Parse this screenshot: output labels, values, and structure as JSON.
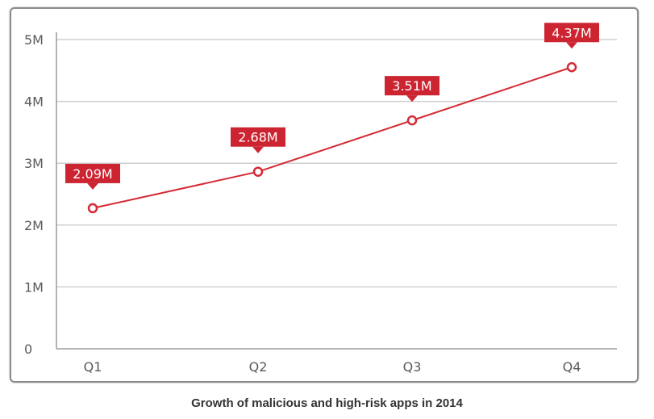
{
  "caption": "Growth of malicious and high-risk apps in 2014",
  "colors": {
    "line": "#d42a35",
    "label_bg": "#cc2431",
    "grid": "#cfcfcf",
    "axis": "#9a9a9a"
  },
  "chart_data": {
    "type": "line",
    "title": "",
    "xlabel": "",
    "ylabel": "",
    "categories": [
      "Q1",
      "Q2",
      "Q3",
      "Q4"
    ],
    "series": [
      {
        "values": [
          2.09,
          2.68,
          3.51,
          4.37
        ]
      }
    ],
    "data_labels": [
      "2.09M",
      "2.68M",
      "3.51M",
      "4.37M"
    ],
    "y_ticks": [
      0,
      1,
      2,
      3,
      4,
      5
    ],
    "y_tick_labels": [
      "0",
      "1M",
      "2M",
      "3M",
      "4M",
      "5M"
    ],
    "ylim": [
      0,
      5
    ],
    "grid": true,
    "legend": "none"
  }
}
